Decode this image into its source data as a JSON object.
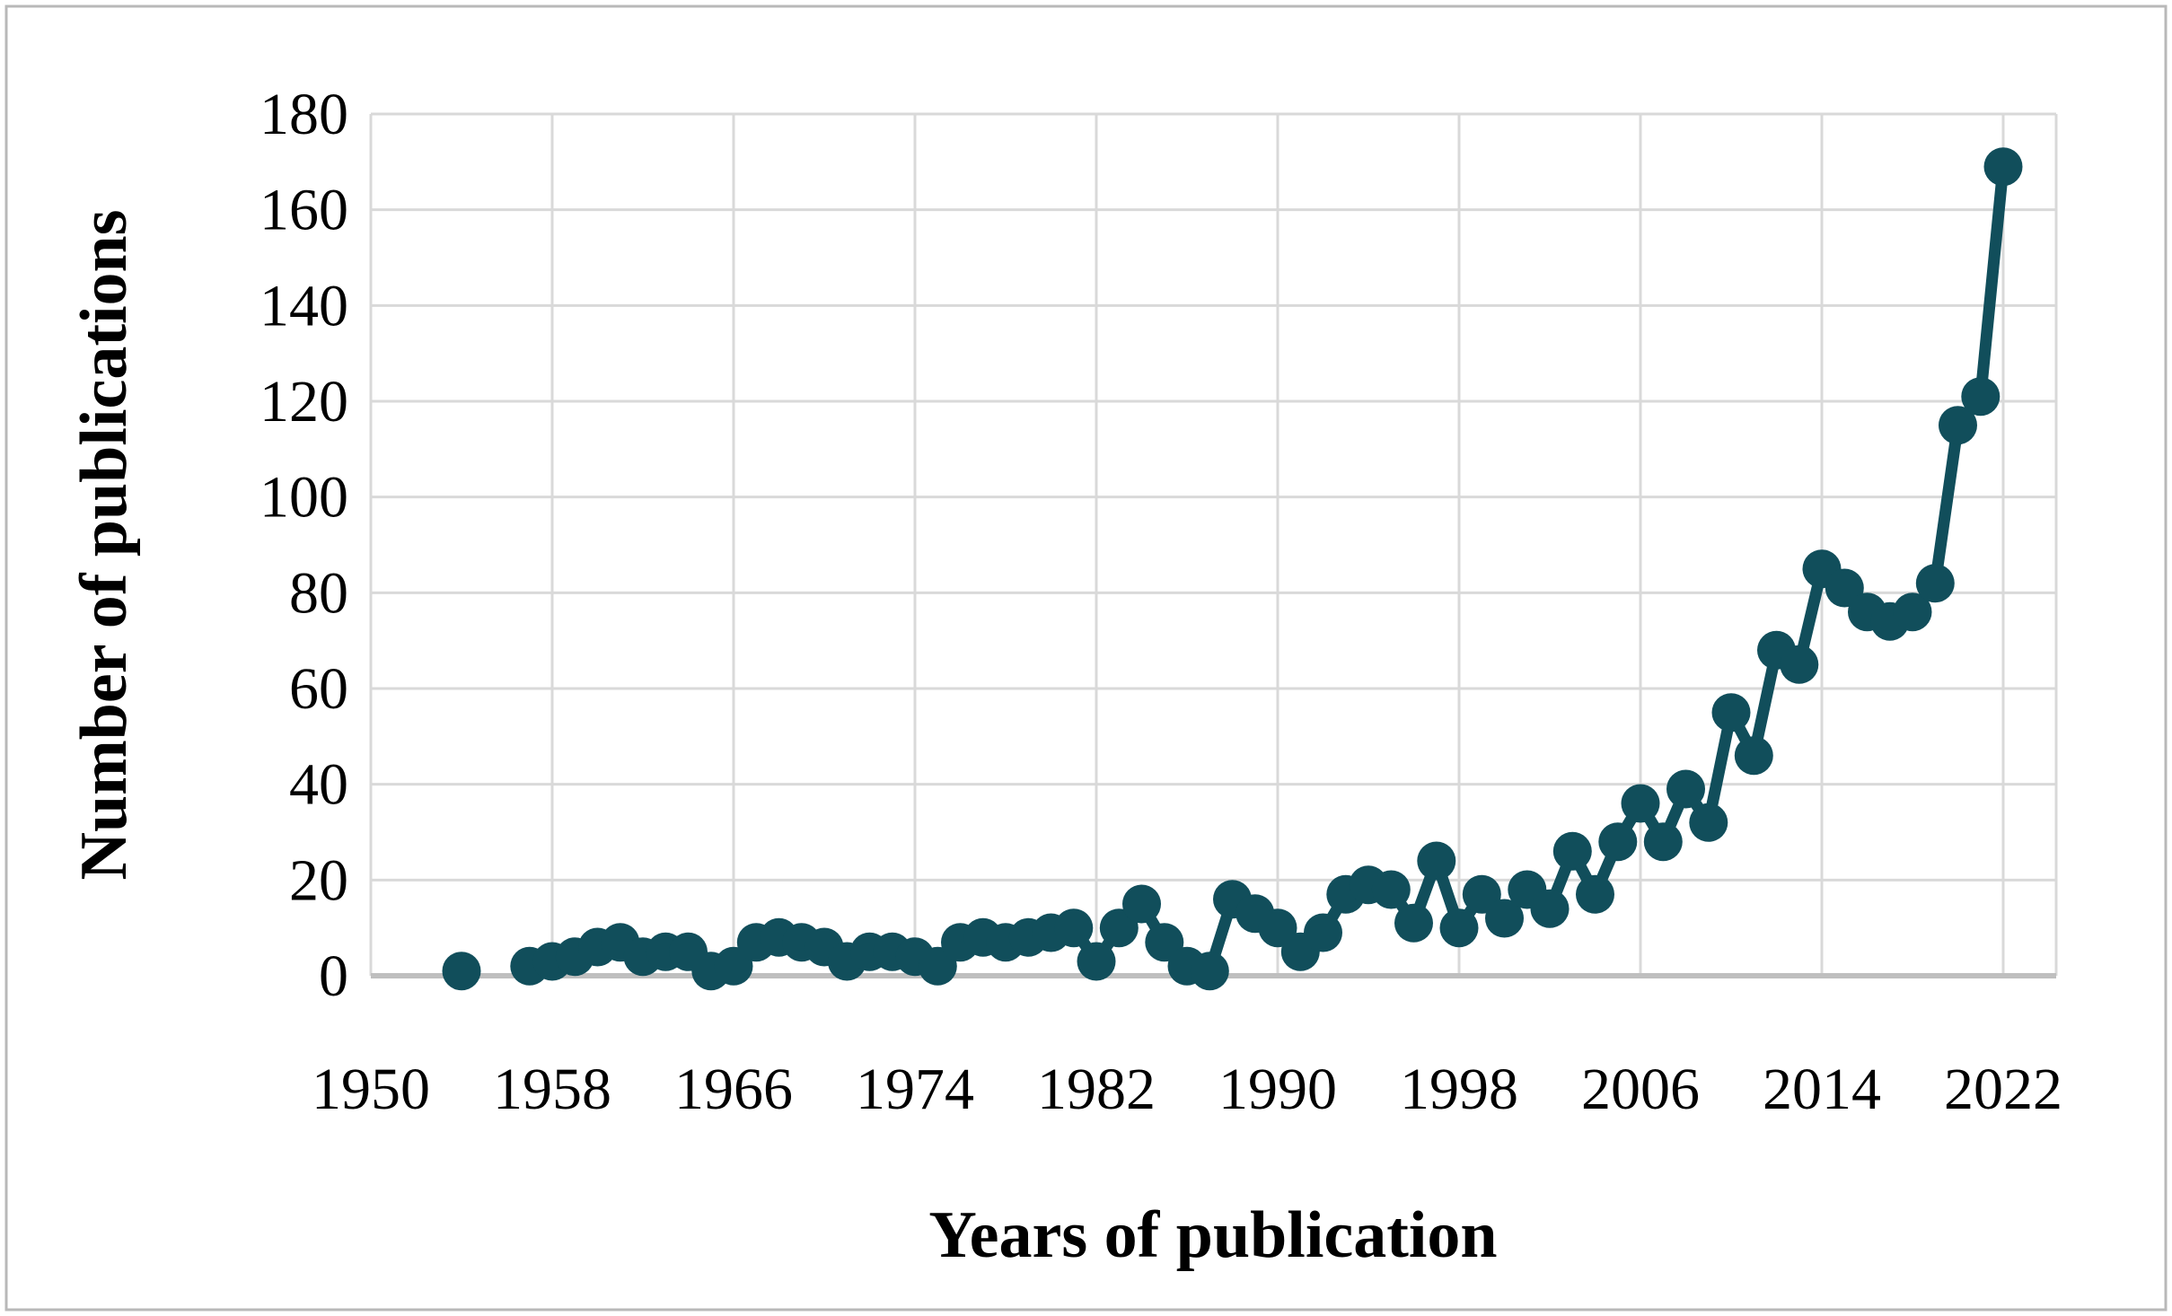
{
  "figure": {
    "background_color": "#ffffff",
    "outer_border_color": "#b9b9b9",
    "gridline_color": "#d9d9d9",
    "axis_line_color": "#bfbfbf",
    "series_color": "#114E5B"
  },
  "chart_data": {
    "type": "line",
    "title": "",
    "xlabel": "Years of publication",
    "ylabel": "Number of publications",
    "legend_position": "none",
    "grid": "on",
    "xlim": [
      1950,
      2024.3
    ],
    "ylim": [
      0,
      180
    ],
    "y_ticks": [
      0,
      20,
      40,
      60,
      80,
      100,
      120,
      140,
      160,
      180
    ],
    "x_ticks": [
      1950,
      1958,
      1966,
      1974,
      1982,
      1990,
      1998,
      2006,
      2014,
      2022
    ],
    "series": [
      {
        "name": "Number of publications",
        "marker": "circle",
        "points": [
          [
            1954,
            1
          ],
          [
            1957,
            2
          ],
          [
            1958,
            3
          ],
          [
            1959,
            4
          ],
          [
            1960,
            6
          ],
          [
            1961,
            7
          ],
          [
            1962,
            4
          ],
          [
            1963,
            5
          ],
          [
            1964,
            5
          ],
          [
            1965,
            1
          ],
          [
            1966,
            2
          ],
          [
            1967,
            7
          ],
          [
            1968,
            8
          ],
          [
            1969,
            7
          ],
          [
            1970,
            6
          ],
          [
            1971,
            3
          ],
          [
            1972,
            5
          ],
          [
            1973,
            5
          ],
          [
            1974,
            4
          ],
          [
            1975,
            2
          ],
          [
            1976,
            7
          ],
          [
            1977,
            8
          ],
          [
            1978,
            7
          ],
          [
            1979,
            8
          ],
          [
            1980,
            9
          ],
          [
            1981,
            10
          ],
          [
            1982,
            3
          ],
          [
            1983,
            10
          ],
          [
            1984,
            15
          ],
          [
            1985,
            7
          ],
          [
            1986,
            2
          ],
          [
            1987,
            1
          ],
          [
            1988,
            16
          ],
          [
            1989,
            13
          ],
          [
            1990,
            10
          ],
          [
            1991,
            5
          ],
          [
            1992,
            9
          ],
          [
            1993,
            17
          ],
          [
            1994,
            19
          ],
          [
            1995,
            18
          ],
          [
            1996,
            11
          ],
          [
            1997,
            24
          ],
          [
            1998,
            10
          ],
          [
            1999,
            17
          ],
          [
            2000,
            12
          ],
          [
            2001,
            18
          ],
          [
            2002,
            14
          ],
          [
            2003,
            26
          ],
          [
            2004,
            17
          ],
          [
            2005,
            28
          ],
          [
            2006,
            36
          ],
          [
            2007,
            28
          ],
          [
            2008,
            39
          ],
          [
            2009,
            32
          ],
          [
            2010,
            55
          ],
          [
            2011,
            46
          ],
          [
            2012,
            68
          ],
          [
            2013,
            65
          ],
          [
            2014,
            85
          ],
          [
            2015,
            81
          ],
          [
            2016,
            76
          ],
          [
            2017,
            74
          ],
          [
            2018,
            76
          ],
          [
            2019,
            82
          ],
          [
            2020,
            115
          ],
          [
            2021,
            121
          ],
          [
            2022,
            169
          ]
        ]
      }
    ]
  }
}
